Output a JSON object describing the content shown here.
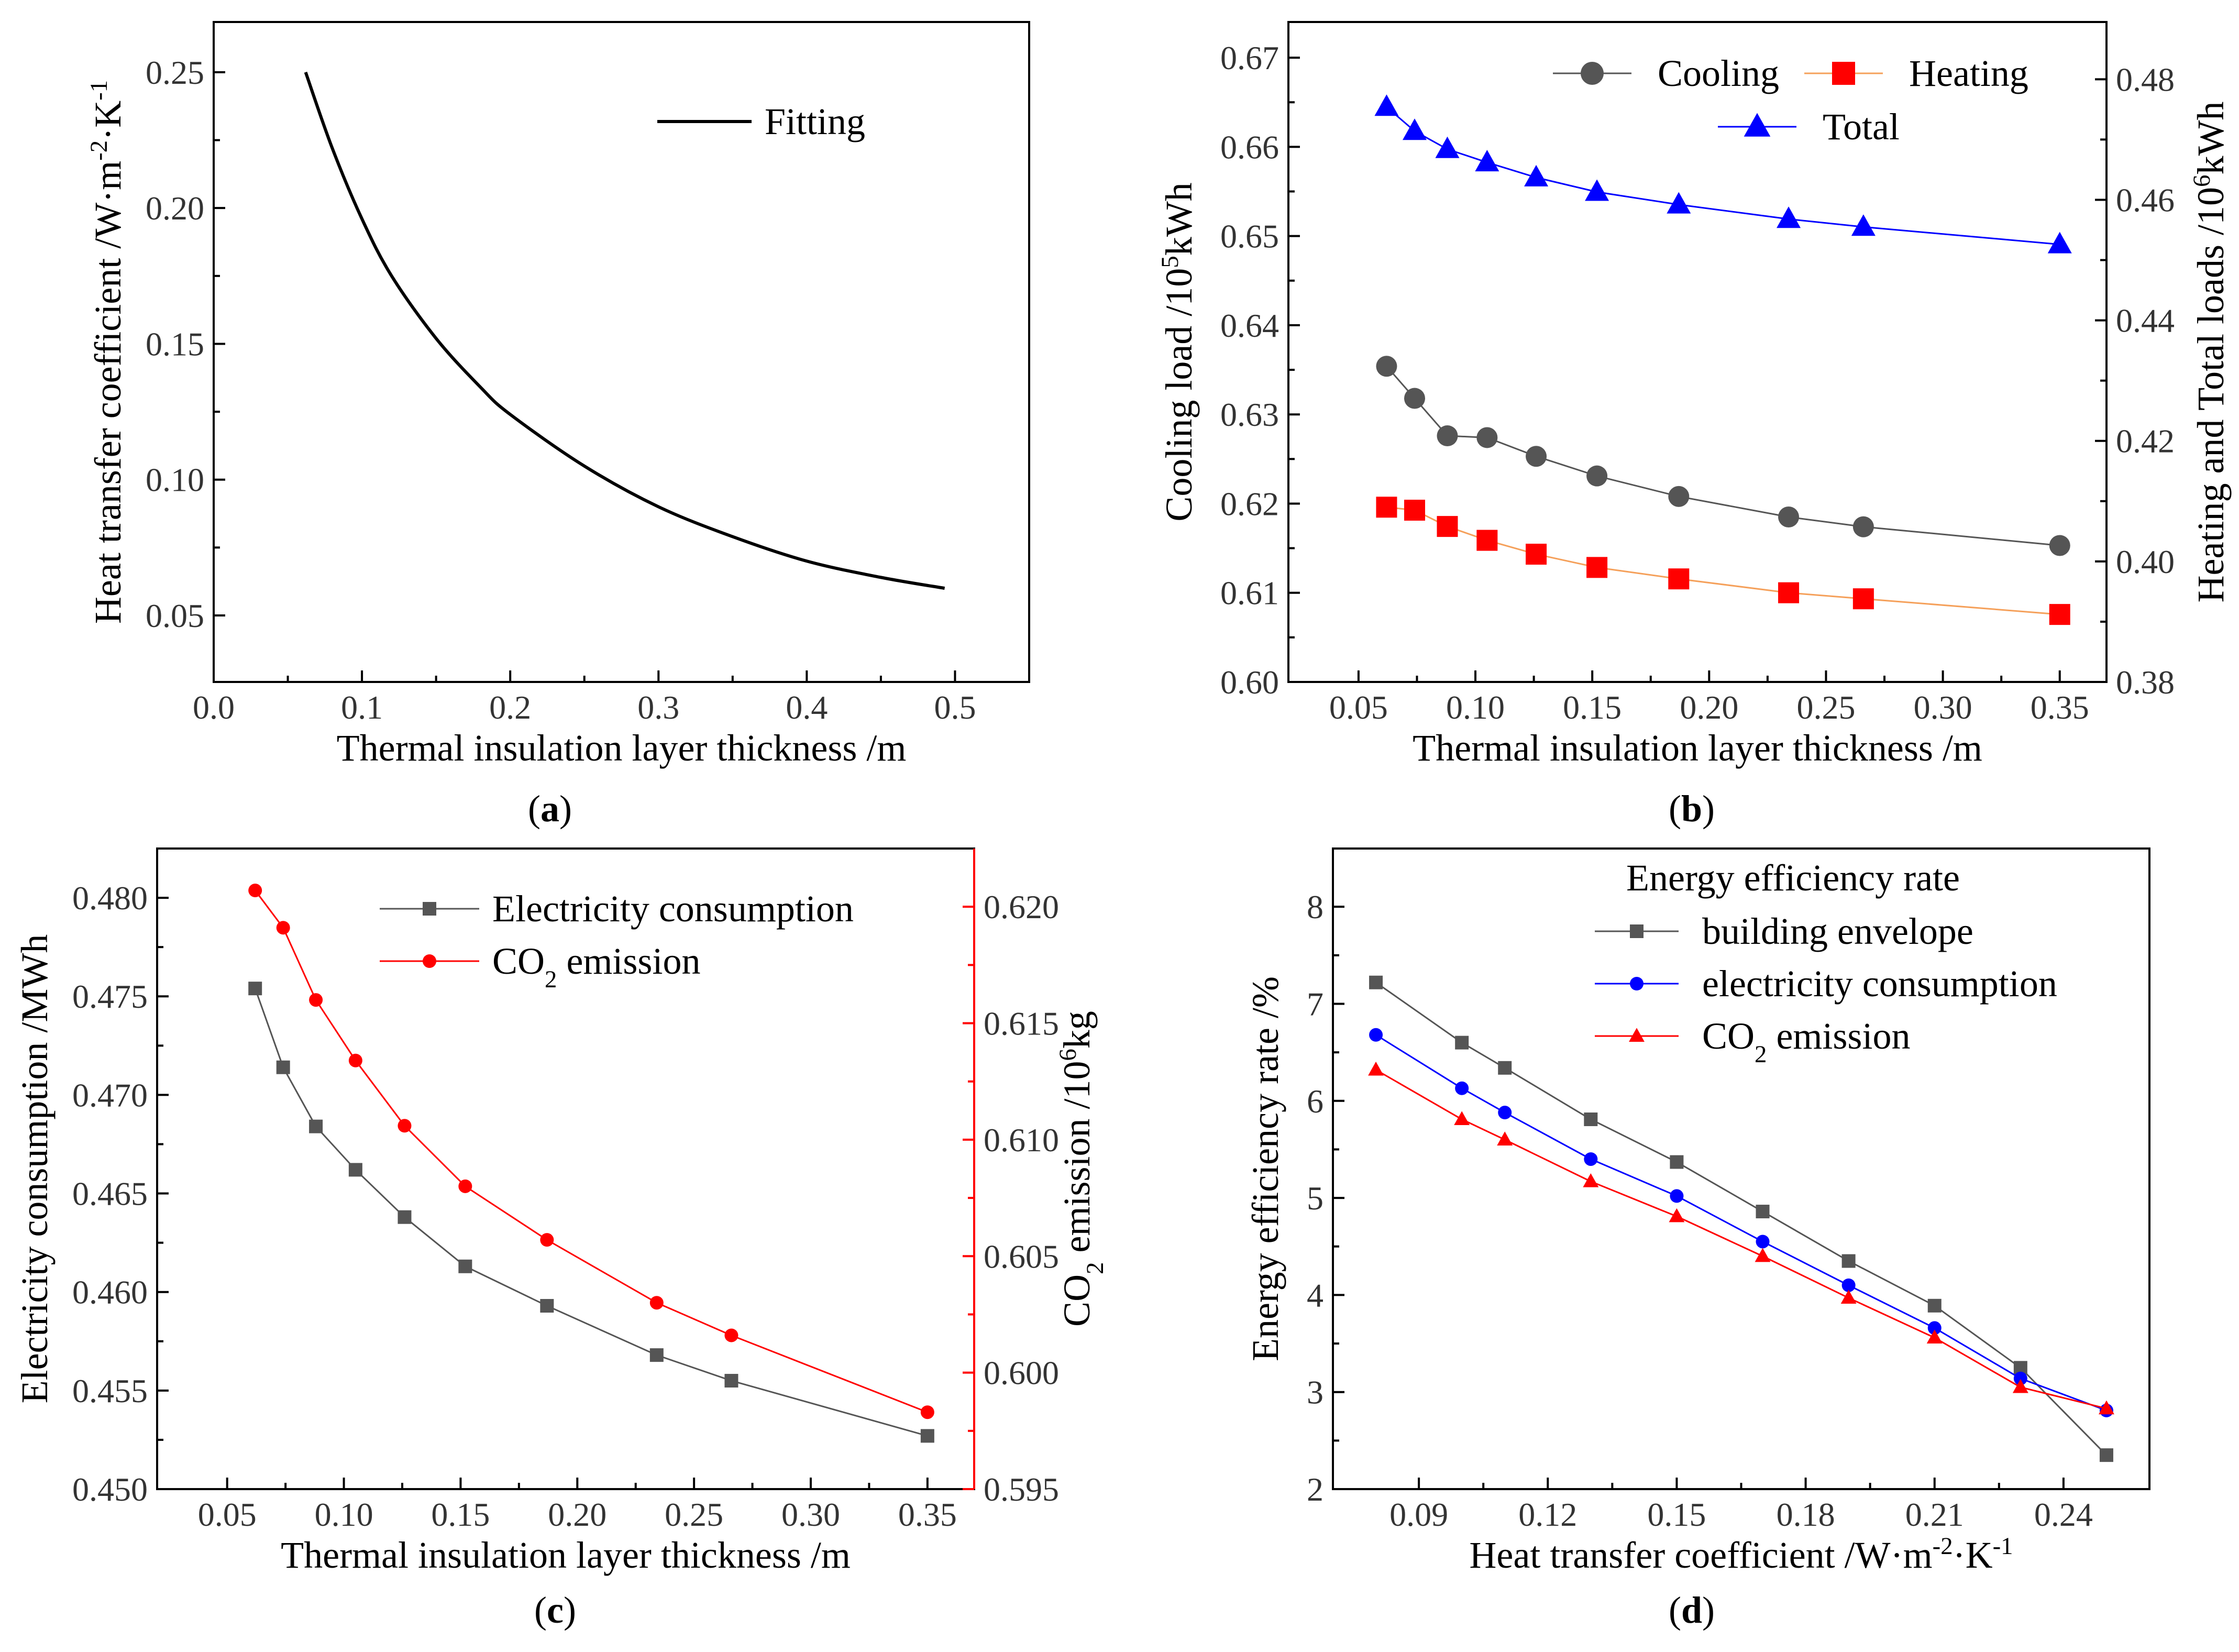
{
  "chart_data": [
    {
      "id": "a",
      "type": "line",
      "caption": {
        "letter": "a"
      },
      "xlabel": "Thermal insulation layer thickness /m",
      "ylabel": "Heat transfer coefficient /W·m⁻²·K⁻¹",
      "xlim": [
        0,
        0.55
      ],
      "ylim": [
        0.0255,
        0.2685
      ],
      "xticks": [
        0.0,
        0.1,
        0.2,
        0.3,
        0.4,
        0.5
      ],
      "xtick_labels": [
        "0.0",
        "0.1",
        "0.2",
        "0.3",
        "0.4",
        "0.5"
      ],
      "yticks": [
        0.05,
        0.1,
        0.15,
        0.2,
        0.25
      ],
      "ytick_labels": [
        "0.05",
        "0.10",
        "0.15",
        "0.20",
        "0.25"
      ],
      "series": [
        {
          "name": "Fitting",
          "color": "#000000",
          "marker": "none",
          "x": [
            0.062,
            0.08,
            0.1,
            0.12,
            0.15,
            0.18,
            0.2,
            0.25,
            0.3,
            0.35,
            0.4,
            0.45,
            0.493
          ],
          "y": [
            0.25,
            0.222,
            0.196,
            0.175,
            0.152,
            0.134,
            0.124,
            0.105,
            0.09,
            0.079,
            0.07,
            0.064,
            0.06
          ]
        }
      ],
      "legend_position": "top-right"
    },
    {
      "id": "b",
      "type": "line",
      "caption": {
        "letter": "b"
      },
      "xlabel": "Thermal insulation layer thickness /m",
      "ylabel": "Cooling load /10⁵kWh",
      "y2label": "Heating and Total loads /10⁶kWh",
      "xlim": [
        0.02,
        0.37
      ],
      "ylim": [
        0.6,
        0.674
      ],
      "y2lim": [
        0.38,
        0.4895
      ],
      "xticks": [
        0.05,
        0.1,
        0.15,
        0.2,
        0.25,
        0.3,
        0.35
      ],
      "xtick_labels": [
        "0.05",
        "0.10",
        "0.15",
        "0.20",
        "0.25",
        "0.30",
        "0.35"
      ],
      "yticks": [
        0.6,
        0.61,
        0.62,
        0.63,
        0.64,
        0.65,
        0.66,
        0.67
      ],
      "ytick_labels": [
        "0.60",
        "0.61",
        "0.62",
        "0.63",
        "0.64",
        "0.65",
        "0.66",
        "0.67"
      ],
      "y2ticks": [
        0.38,
        0.4,
        0.42,
        0.44,
        0.46,
        0.48
      ],
      "y2tick_labels": [
        "0.38",
        "0.40",
        "0.42",
        "0.44",
        "0.46",
        "0.48"
      ],
      "x": [
        0.062,
        0.074,
        0.088,
        0.105,
        0.126,
        0.152,
        0.187,
        0.234,
        0.266,
        0.35
      ],
      "series": [
        {
          "name": "Cooling",
          "axis": "left",
          "color": "#555555",
          "marker": "circle",
          "values": [
            0.6354,
            0.6318,
            0.6276,
            0.6274,
            0.6253,
            0.6231,
            0.6208,
            0.6185,
            0.6174,
            0.6153
          ]
        },
        {
          "name": "Heating",
          "axis": "right",
          "color": "#ff0000",
          "line_color": "#f5a05a",
          "marker": "square",
          "values": [
            0.409,
            0.4085,
            0.4058,
            0.4035,
            0.4012,
            0.399,
            0.3971,
            0.3948,
            0.3938,
            0.3912
          ]
        },
        {
          "name": "Total",
          "axis": "right",
          "color": "#0000ff",
          "marker": "triangle",
          "values": [
            0.4754,
            0.4714,
            0.4684,
            0.4662,
            0.4637,
            0.4613,
            0.4592,
            0.4568,
            0.4555,
            0.4526
          ]
        }
      ],
      "legend_position": "top"
    },
    {
      "id": "c",
      "type": "line",
      "caption": {
        "letter": "c"
      },
      "xlabel": "Thermal insulation layer thickness /m",
      "ylabel": "Electricity consumption /MWh",
      "y2label": "CO₂ emission /10⁶kg",
      "xlim": [
        0.02,
        0.37
      ],
      "ylim": [
        0.45,
        0.4825
      ],
      "y2lim": [
        0.595,
        0.6225
      ],
      "xticks": [
        0.05,
        0.1,
        0.15,
        0.2,
        0.25,
        0.3,
        0.35
      ],
      "xtick_labels": [
        "0.05",
        "0.10",
        "0.15",
        "0.20",
        "0.25",
        "0.30",
        "0.35"
      ],
      "yticks": [
        0.45,
        0.455,
        0.46,
        0.465,
        0.47,
        0.475,
        0.48
      ],
      "ytick_labels": [
        "0.450",
        "0.455",
        "0.460",
        "0.465",
        "0.470",
        "0.475",
        "0.480"
      ],
      "y2ticks": [
        0.595,
        0.6,
        0.605,
        0.61,
        0.615,
        0.62
      ],
      "y2tick_labels": [
        "0.595",
        "0.600",
        "0.605",
        "0.610",
        "0.615",
        "0.620"
      ],
      "x": [
        0.062,
        0.074,
        0.088,
        0.105,
        0.126,
        0.152,
        0.187,
        0.234,
        0.266,
        0.35
      ],
      "series": [
        {
          "name": "Electricity consumption",
          "axis": "left",
          "color": "#555555",
          "marker": "square",
          "values": [
            0.4754,
            0.4714,
            0.4684,
            0.4662,
            0.4638,
            0.4613,
            0.4593,
            0.4568,
            0.4555,
            0.4527
          ]
        },
        {
          "name": "CO₂ emission",
          "axis": "right",
          "color": "#ff0000",
          "marker": "circle",
          "values": [
            0.6207,
            0.6191,
            0.616,
            0.6134,
            0.6106,
            0.608,
            0.6057,
            0.603,
            0.6016,
            0.5983
          ]
        }
      ],
      "legend_position": "top-right"
    },
    {
      "id": "d",
      "type": "line",
      "caption": {
        "letter": "d"
      },
      "xlabel": "Heat transfer coefficient /W·m⁻²·K⁻¹",
      "ylabel": "Energy efficiency rate /%",
      "xlim": [
        0.07,
        0.26
      ],
      "ylim": [
        2,
        8.6
      ],
      "xticks": [
        0.09,
        0.12,
        0.15,
        0.18,
        0.21,
        0.24
      ],
      "xtick_labels": [
        "0.09",
        "0.12",
        "0.15",
        "0.18",
        "0.21",
        "0.24"
      ],
      "yticks": [
        2,
        3,
        4,
        5,
        6,
        7,
        8
      ],
      "ytick_labels": [
        "2",
        "3",
        "4",
        "5",
        "6",
        "7",
        "8"
      ],
      "x": [
        0.08,
        0.1,
        0.11,
        0.13,
        0.15,
        0.17,
        0.19,
        0.21,
        0.23,
        0.25
      ],
      "legend_title": "Energy efficiency rate",
      "series": [
        {
          "name": "building envelope",
          "color": "#555555",
          "marker": "square",
          "values": [
            7.22,
            6.6,
            6.34,
            5.81,
            5.37,
            4.86,
            4.35,
            3.89,
            3.25,
            2.35
          ]
        },
        {
          "name": "electricity consumption",
          "color": "#0000ff",
          "marker": "circle",
          "values": [
            6.68,
            6.13,
            5.88,
            5.4,
            5.02,
            4.55,
            4.1,
            3.66,
            3.14,
            2.81
          ]
        },
        {
          "name": "CO₂ emission",
          "color": "#ff0000",
          "marker": "triangle",
          "values": [
            6.32,
            5.81,
            5.6,
            5.17,
            4.81,
            4.4,
            3.97,
            3.56,
            3.05,
            2.83
          ]
        }
      ],
      "legend_position": "top-right"
    }
  ]
}
